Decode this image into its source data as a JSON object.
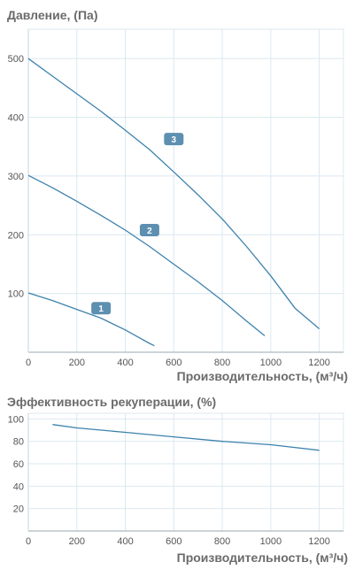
{
  "chart_data": [
    {
      "type": "line",
      "title": "Давление, (Па)",
      "xlabel": "Производительность, (м³/ч)",
      "ylabel": "",
      "xlim": [
        0,
        1300
      ],
      "ylim": [
        0,
        550
      ],
      "x_ticks": [
        0,
        200,
        400,
        600,
        800,
        1000,
        1200
      ],
      "y_ticks": [
        100,
        200,
        300,
        400,
        500
      ],
      "grid": true,
      "line_color": "#3d82ad",
      "label_color": "#5d8fb0",
      "series": [
        {
          "name": "1",
          "label_at": [
            300,
            75
          ],
          "points": [
            [
              0,
              101
            ],
            [
              100,
              88
            ],
            [
              200,
              73
            ],
            [
              300,
              58
            ],
            [
              400,
              38
            ],
            [
              500,
              15
            ],
            [
              520,
              11
            ]
          ]
        },
        {
          "name": "2",
          "label_at": [
            500,
            208
          ],
          "points": [
            [
              0,
              301
            ],
            [
              100,
              280
            ],
            [
              200,
              257
            ],
            [
              300,
              233
            ],
            [
              400,
              208
            ],
            [
              500,
              180
            ],
            [
              600,
              150
            ],
            [
              700,
              120
            ],
            [
              800,
              88
            ],
            [
              900,
              53
            ],
            [
              975,
              28
            ]
          ]
        },
        {
          "name": "3",
          "label_at": [
            600,
            363
          ],
          "points": [
            [
              0,
              500
            ],
            [
              100,
              470
            ],
            [
              200,
              440
            ],
            [
              300,
              410
            ],
            [
              400,
              378
            ],
            [
              500,
              345
            ],
            [
              600,
              307
            ],
            [
              700,
              268
            ],
            [
              800,
              227
            ],
            [
              900,
              180
            ],
            [
              1000,
              130
            ],
            [
              1100,
              75
            ],
            [
              1200,
              40
            ]
          ]
        }
      ]
    },
    {
      "type": "line",
      "title": "Эффективность рекуперации, (%)",
      "xlabel": "Производительность, (м³/ч)",
      "ylabel": "",
      "xlim": [
        0,
        1300
      ],
      "ylim": [
        0,
        105
      ],
      "x_ticks": [
        0,
        200,
        400,
        600,
        800,
        1000,
        1200
      ],
      "y_ticks": [
        20,
        40,
        60,
        80,
        100
      ],
      "grid": true,
      "line_color": "#3d82ad",
      "series": [
        {
          "points": [
            [
              100,
              95
            ],
            [
              200,
              92
            ],
            [
              400,
              88
            ],
            [
              600,
              84
            ],
            [
              800,
              80
            ],
            [
              1000,
              77
            ],
            [
              1200,
              72
            ]
          ]
        }
      ]
    }
  ]
}
